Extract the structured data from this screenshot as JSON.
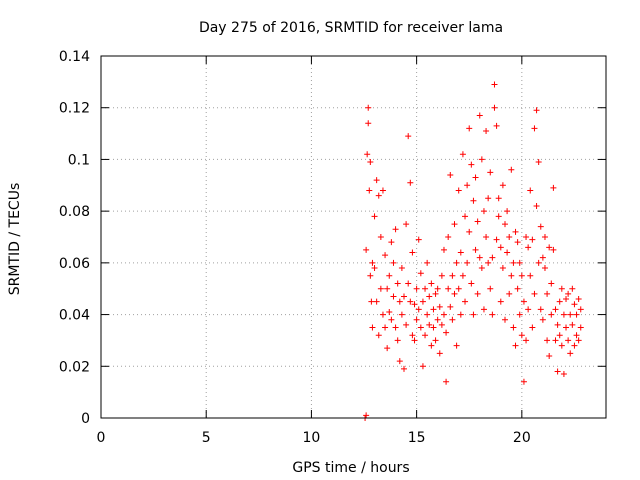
{
  "chart_data": {
    "type": "scatter",
    "title": "Day 275 of 2016, SRMTID for receiver lama",
    "xlabel": "GPS time / hours",
    "ylabel": "SRMTID / TECUs",
    "xlim": [
      0,
      24
    ],
    "ylim": [
      0,
      0.14
    ],
    "xticks": [
      0,
      5,
      10,
      15,
      20
    ],
    "xtick_labels": [
      "0",
      "5",
      "10",
      "15",
      "20"
    ],
    "yticks": [
      0,
      0.02,
      0.04,
      0.06,
      0.08,
      0.1,
      0.12,
      0.14
    ],
    "ytick_labels": [
      "0",
      "0.02",
      "0.04",
      "0.06",
      "0.08",
      "0.1",
      "0.12",
      "0.14"
    ],
    "grid": true,
    "marker": "+",
    "series": [
      {
        "name": "SRMTID",
        "color": "#ff0000",
        "points": [
          [
            12.55,
            0.0
          ],
          [
            12.6,
            0.001
          ],
          [
            12.6,
            0.065
          ],
          [
            12.65,
            0.102
          ],
          [
            12.7,
            0.12
          ],
          [
            12.7,
            0.114
          ],
          [
            12.75,
            0.088
          ],
          [
            12.8,
            0.099
          ],
          [
            12.8,
            0.055
          ],
          [
            12.85,
            0.045
          ],
          [
            12.9,
            0.06
          ],
          [
            12.9,
            0.035
          ],
          [
            13.0,
            0.058
          ],
          [
            13.0,
            0.078
          ],
          [
            13.1,
            0.092
          ],
          [
            13.1,
            0.045
          ],
          [
            13.2,
            0.086
          ],
          [
            13.2,
            0.032
          ],
          [
            13.3,
            0.07
          ],
          [
            13.3,
            0.05
          ],
          [
            13.4,
            0.04
          ],
          [
            13.4,
            0.088
          ],
          [
            13.5,
            0.063
          ],
          [
            13.5,
            0.035
          ],
          [
            13.6,
            0.05
          ],
          [
            13.6,
            0.027
          ],
          [
            13.7,
            0.055
          ],
          [
            13.7,
            0.041
          ],
          [
            13.8,
            0.068
          ],
          [
            13.8,
            0.038
          ],
          [
            13.9,
            0.06
          ],
          [
            13.9,
            0.047
          ],
          [
            14.0,
            0.035
          ],
          [
            14.0,
            0.073
          ],
          [
            14.1,
            0.052
          ],
          [
            14.1,
            0.03
          ],
          [
            14.2,
            0.045
          ],
          [
            14.2,
            0.022
          ],
          [
            14.3,
            0.04
          ],
          [
            14.3,
            0.058
          ],
          [
            14.4,
            0.019
          ],
          [
            14.4,
            0.047
          ],
          [
            14.5,
            0.036
          ],
          [
            14.5,
            0.075
          ],
          [
            14.6,
            0.109
          ],
          [
            14.6,
            0.052
          ],
          [
            14.7,
            0.045
          ],
          [
            14.7,
            0.091
          ],
          [
            14.8,
            0.032
          ],
          [
            14.8,
            0.064
          ],
          [
            14.9,
            0.044
          ],
          [
            14.9,
            0.03
          ],
          [
            15.0,
            0.05
          ],
          [
            15.0,
            0.038
          ],
          [
            15.1,
            0.042
          ],
          [
            15.1,
            0.069
          ],
          [
            15.2,
            0.035
          ],
          [
            15.2,
            0.056
          ],
          [
            15.3,
            0.02
          ],
          [
            15.3,
            0.045
          ],
          [
            15.4,
            0.032
          ],
          [
            15.4,
            0.05
          ],
          [
            15.5,
            0.04
          ],
          [
            15.5,
            0.06
          ],
          [
            15.6,
            0.036
          ],
          [
            15.6,
            0.047
          ],
          [
            15.7,
            0.028
          ],
          [
            15.7,
            0.052
          ],
          [
            15.8,
            0.042
          ],
          [
            15.8,
            0.035
          ],
          [
            15.9,
            0.03
          ],
          [
            15.9,
            0.048
          ],
          [
            16.0,
            0.038
          ],
          [
            16.0,
            0.05
          ],
          [
            16.1,
            0.043
          ],
          [
            16.1,
            0.025
          ],
          [
            16.2,
            0.055
          ],
          [
            16.2,
            0.036
          ],
          [
            16.3,
            0.04
          ],
          [
            16.3,
            0.065
          ],
          [
            16.4,
            0.033
          ],
          [
            16.4,
            0.014
          ],
          [
            16.5,
            0.05
          ],
          [
            16.5,
            0.07
          ],
          [
            16.6,
            0.043
          ],
          [
            16.6,
            0.094
          ],
          [
            16.7,
            0.055
          ],
          [
            16.7,
            0.038
          ],
          [
            16.8,
            0.048
          ],
          [
            16.8,
            0.075
          ],
          [
            16.9,
            0.028
          ],
          [
            16.9,
            0.06
          ],
          [
            17.0,
            0.05
          ],
          [
            17.0,
            0.088
          ],
          [
            17.1,
            0.04
          ],
          [
            17.1,
            0.064
          ],
          [
            17.2,
            0.102
          ],
          [
            17.2,
            0.055
          ],
          [
            17.3,
            0.078
          ],
          [
            17.3,
            0.045
          ],
          [
            17.4,
            0.09
          ],
          [
            17.4,
            0.06
          ],
          [
            17.5,
            0.112
          ],
          [
            17.5,
            0.072
          ],
          [
            17.6,
            0.052
          ],
          [
            17.6,
            0.098
          ],
          [
            17.7,
            0.04
          ],
          [
            17.7,
            0.084
          ],
          [
            17.8,
            0.065
          ],
          [
            17.8,
            0.093
          ],
          [
            17.9,
            0.048
          ],
          [
            17.9,
            0.076
          ],
          [
            18.0,
            0.117
          ],
          [
            18.0,
            0.062
          ],
          [
            18.1,
            0.1
          ],
          [
            18.1,
            0.058
          ],
          [
            18.2,
            0.08
          ],
          [
            18.2,
            0.042
          ],
          [
            18.3,
            0.07
          ],
          [
            18.3,
            0.111
          ],
          [
            18.4,
            0.06
          ],
          [
            18.4,
            0.085
          ],
          [
            18.5,
            0.05
          ],
          [
            18.5,
            0.095
          ],
          [
            18.6,
            0.062
          ],
          [
            18.6,
            0.04
          ],
          [
            18.7,
            0.129
          ],
          [
            18.7,
            0.12
          ],
          [
            18.8,
            0.113
          ],
          [
            18.8,
            0.069
          ],
          [
            18.9,
            0.078
          ],
          [
            18.9,
            0.085
          ],
          [
            19.0,
            0.066
          ],
          [
            19.0,
            0.045
          ],
          [
            19.1,
            0.09
          ],
          [
            19.1,
            0.058
          ],
          [
            19.2,
            0.075
          ],
          [
            19.2,
            0.038
          ],
          [
            19.3,
            0.064
          ],
          [
            19.3,
            0.08
          ],
          [
            19.4,
            0.048
          ],
          [
            19.4,
            0.07
          ],
          [
            19.5,
            0.096
          ],
          [
            19.5,
            0.055
          ],
          [
            19.6,
            0.06
          ],
          [
            19.6,
            0.035
          ],
          [
            19.7,
            0.072
          ],
          [
            19.7,
            0.028
          ],
          [
            19.8,
            0.05
          ],
          [
            19.8,
            0.068
          ],
          [
            19.9,
            0.04
          ],
          [
            19.9,
            0.06
          ],
          [
            20.0,
            0.032
          ],
          [
            20.0,
            0.055
          ],
          [
            20.1,
            0.014
          ],
          [
            20.1,
            0.045
          ],
          [
            20.2,
            0.03
          ],
          [
            20.2,
            0.07
          ],
          [
            20.3,
            0.042
          ],
          [
            20.3,
            0.066
          ],
          [
            20.4,
            0.055
          ],
          [
            20.4,
            0.088
          ],
          [
            20.5,
            0.069
          ],
          [
            20.5,
            0.035
          ],
          [
            20.6,
            0.112
          ],
          [
            20.6,
            0.048
          ],
          [
            20.7,
            0.119
          ],
          [
            20.7,
            0.082
          ],
          [
            20.8,
            0.099
          ],
          [
            20.8,
            0.06
          ],
          [
            20.9,
            0.074
          ],
          [
            20.9,
            0.042
          ],
          [
            21.0,
            0.062
          ],
          [
            21.0,
            0.038
          ],
          [
            21.1,
            0.058
          ],
          [
            21.1,
            0.07
          ],
          [
            21.2,
            0.048
          ],
          [
            21.2,
            0.03
          ],
          [
            21.3,
            0.066
          ],
          [
            21.3,
            0.024
          ],
          [
            21.4,
            0.052
          ],
          [
            21.4,
            0.04
          ],
          [
            21.5,
            0.065
          ],
          [
            21.5,
            0.089
          ],
          [
            21.6,
            0.042
          ],
          [
            21.6,
            0.03
          ],
          [
            21.7,
            0.036
          ],
          [
            21.7,
            0.018
          ],
          [
            21.8,
            0.045
          ],
          [
            21.8,
            0.032
          ],
          [
            21.9,
            0.05
          ],
          [
            21.9,
            0.028
          ],
          [
            22.0,
            0.04
          ],
          [
            22.0,
            0.017
          ],
          [
            22.1,
            0.035
          ],
          [
            22.1,
            0.046
          ],
          [
            22.2,
            0.03
          ],
          [
            22.2,
            0.048
          ],
          [
            22.3,
            0.025
          ],
          [
            22.3,
            0.04
          ],
          [
            22.4,
            0.036
          ],
          [
            22.4,
            0.05
          ],
          [
            22.5,
            0.028
          ],
          [
            22.5,
            0.044
          ],
          [
            22.6,
            0.032
          ],
          [
            22.6,
            0.04
          ],
          [
            22.7,
            0.03
          ],
          [
            22.7,
            0.046
          ],
          [
            22.8,
            0.035
          ],
          [
            22.8,
            0.042
          ]
        ]
      }
    ]
  }
}
